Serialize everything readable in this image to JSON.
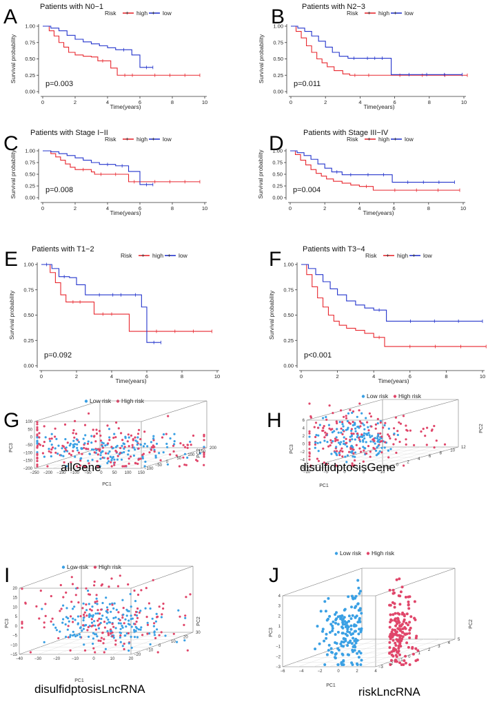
{
  "colors": {
    "high": "#e8262d",
    "low": "#2233cc",
    "low_pca": "#3aa0e4",
    "high_pca": "#e0466a"
  },
  "legend_km": {
    "title": "Risk",
    "high": "high",
    "low": "low"
  },
  "legend_pca": {
    "low": "Low risk",
    "high": "High risk"
  },
  "chart_data": [
    {
      "type": "line",
      "panel": "A",
      "title": "Patients with N0−1",
      "pvalue": "p=0.003",
      "xlabel": "Time(years)",
      "ylabel": "Survival probability",
      "xlim": [
        0,
        10
      ],
      "ylim": [
        0,
        1
      ],
      "xticks": [
        "0",
        "2",
        "4",
        "6",
        "8",
        "10"
      ],
      "yticks": [
        "0.00",
        "0.25",
        "0.50",
        "0.75",
        "1.00"
      ],
      "series": [
        {
          "name": "high",
          "x": [
            0,
            0.4,
            0.7,
            1,
            1.3,
            1.6,
            2,
            2.5,
            3,
            3.4,
            4,
            4.2,
            4.6,
            6,
            9.7
          ],
          "y": [
            1,
            0.93,
            0.85,
            0.75,
            0.68,
            0.6,
            0.56,
            0.54,
            0.53,
            0.47,
            0.47,
            0.36,
            0.25,
            0.25,
            0.25
          ]
        },
        {
          "name": "low",
          "x": [
            0,
            0.5,
            1,
            1.5,
            2,
            2.5,
            3,
            3.5,
            4,
            4.5,
            5.5,
            6,
            6.8
          ],
          "y": [
            1,
            0.97,
            0.93,
            0.86,
            0.8,
            0.76,
            0.73,
            0.7,
            0.67,
            0.64,
            0.56,
            0.37,
            0.37
          ]
        }
      ]
    },
    {
      "type": "line",
      "panel": "B",
      "title": "Patients with N2−3",
      "pvalue": "p=0.011",
      "xlabel": "Time(years)",
      "ylabel": "Survival probability",
      "xlim": [
        0,
        10
      ],
      "ylim": [
        0,
        1
      ],
      "xticks": [
        "0",
        "2",
        "4",
        "6",
        "8",
        "10"
      ],
      "yticks": [
        "0.00",
        "0.25",
        "0.50",
        "0.75",
        "1.00"
      ],
      "series": [
        {
          "name": "high",
          "x": [
            0,
            0.3,
            0.6,
            0.9,
            1.2,
            1.5,
            1.8,
            2.1,
            2.5,
            3,
            3.4,
            4,
            5,
            10.2
          ],
          "y": [
            1,
            0.92,
            0.82,
            0.7,
            0.6,
            0.5,
            0.44,
            0.38,
            0.32,
            0.27,
            0.25,
            0.25,
            0.25,
            0.25
          ]
        },
        {
          "name": "low",
          "x": [
            0,
            0.4,
            0.8,
            1.2,
            1.6,
            2,
            2.4,
            2.8,
            3.3,
            4,
            5.7,
            5.8,
            9.9
          ],
          "y": [
            1,
            0.97,
            0.92,
            0.85,
            0.77,
            0.68,
            0.6,
            0.54,
            0.51,
            0.51,
            0.51,
            0.26,
            0.26
          ]
        }
      ]
    },
    {
      "type": "line",
      "panel": "C",
      "title": "Patients with Stage I−II",
      "pvalue": "p=0.008",
      "xlabel": "Time(years)",
      "ylabel": "Survival probability",
      "xlim": [
        0,
        10
      ],
      "ylim": [
        0,
        1
      ],
      "xticks": [
        "0",
        "2",
        "4",
        "6",
        "8",
        "10"
      ],
      "yticks": [
        "0.00",
        "0.25",
        "0.50",
        "0.75",
        "1.00"
      ],
      "series": [
        {
          "name": "high",
          "x": [
            0,
            0.5,
            0.8,
            1.1,
            1.4,
            1.7,
            2,
            3,
            3.2,
            4,
            5,
            5.3,
            6,
            9.7
          ],
          "y": [
            1,
            0.94,
            0.87,
            0.8,
            0.72,
            0.65,
            0.6,
            0.55,
            0.5,
            0.5,
            0.5,
            0.34,
            0.34,
            0.34
          ]
        },
        {
          "name": "low",
          "x": [
            0,
            0.5,
            1,
            1.5,
            2,
            2.5,
            3,
            3.5,
            4.5,
            5.3,
            5.6,
            6,
            6.8
          ],
          "y": [
            1,
            0.98,
            0.94,
            0.9,
            0.85,
            0.8,
            0.75,
            0.71,
            0.68,
            0.56,
            0.56,
            0.28,
            0.28
          ]
        }
      ]
    },
    {
      "type": "line",
      "panel": "D",
      "title": "Patients with Stage III−IV",
      "pvalue": "p=0.004",
      "xlabel": "Time(years)",
      "ylabel": "Survival probability",
      "xlim": [
        0,
        10
      ],
      "ylim": [
        0,
        1
      ],
      "xticks": [
        "0",
        "2",
        "4",
        "6",
        "8",
        "10"
      ],
      "yticks": [
        "0.00",
        "0.25",
        "0.50",
        "0.75",
        "1.00"
      ],
      "series": [
        {
          "name": "high",
          "x": [
            0,
            0.3,
            0.6,
            0.9,
            1.2,
            1.5,
            1.8,
            2.1,
            2.5,
            3,
            3.5,
            4,
            4.8,
            9.8
          ],
          "y": [
            1,
            0.92,
            0.8,
            0.7,
            0.6,
            0.52,
            0.46,
            0.4,
            0.35,
            0.31,
            0.27,
            0.24,
            0.16,
            0.16
          ]
        },
        {
          "name": "low",
          "x": [
            0,
            0.4,
            0.8,
            1.2,
            1.6,
            2,
            2.4,
            3,
            4,
            5,
            5.8,
            5.9,
            9.5
          ],
          "y": [
            1,
            0.96,
            0.9,
            0.82,
            0.72,
            0.63,
            0.55,
            0.49,
            0.49,
            0.49,
            0.49,
            0.33,
            0.33
          ]
        }
      ]
    },
    {
      "type": "line",
      "panel": "E",
      "title": "Patients with T1−2",
      "pvalue": "p=0.092",
      "xlabel": "Time(years)",
      "ylabel": "Survival probability",
      "xlim": [
        0,
        10
      ],
      "ylim": [
        0,
        1
      ],
      "xticks": [
        "0",
        "2",
        "4",
        "6",
        "8",
        "10"
      ],
      "yticks": [
        "0.00",
        "0.25",
        "0.50",
        "0.75",
        "1.00"
      ],
      "series": [
        {
          "name": "high",
          "x": [
            0,
            0.5,
            0.8,
            1.1,
            1.4,
            2.6,
            3,
            4.5,
            5,
            5.5,
            9.7
          ],
          "y": [
            1,
            0.92,
            0.82,
            0.7,
            0.63,
            0.63,
            0.51,
            0.51,
            0.34,
            0.34,
            0.34
          ]
        },
        {
          "name": "low",
          "x": [
            0,
            0.6,
            1,
            1.6,
            2,
            2.5,
            3,
            3.6,
            5,
            5.7,
            6,
            6.8
          ],
          "y": [
            1,
            0.96,
            0.88,
            0.87,
            0.8,
            0.7,
            0.7,
            0.7,
            0.7,
            0.58,
            0.23,
            0.23
          ]
        }
      ]
    },
    {
      "type": "line",
      "panel": "F",
      "title": "Patients with T3−4",
      "pvalue": "p<0.001",
      "xlabel": "Time(years)",
      "ylabel": "Survival probability",
      "xlim": [
        0,
        10
      ],
      "ylim": [
        0,
        1
      ],
      "xticks": [
        "0",
        "2",
        "4",
        "6",
        "8",
        "10"
      ],
      "yticks": [
        "0.00",
        "0.25",
        "0.50",
        "0.75",
        "1.00"
      ],
      "series": [
        {
          "name": "high",
          "x": [
            0,
            0.3,
            0.6,
            0.9,
            1.2,
            1.5,
            1.8,
            2.1,
            2.5,
            3,
            3.5,
            4,
            4.6,
            10.2
          ],
          "y": [
            1,
            0.9,
            0.78,
            0.67,
            0.58,
            0.5,
            0.44,
            0.4,
            0.37,
            0.35,
            0.32,
            0.28,
            0.19,
            0.19
          ]
        },
        {
          "name": "low",
          "x": [
            0,
            0.4,
            0.8,
            1.2,
            1.6,
            2,
            2.5,
            3,
            3.5,
            4,
            4.6,
            4.7,
            10
          ],
          "y": [
            1,
            0.96,
            0.9,
            0.83,
            0.76,
            0.7,
            0.64,
            0.6,
            0.57,
            0.55,
            0.55,
            0.44,
            0.44
          ]
        }
      ]
    },
    {
      "type": "scatter",
      "panel": "G",
      "caption": "allGene",
      "xlabel": "PC1",
      "ylabel": "PC3",
      "zlabel": "PC2",
      "xticks": [
        "−250",
        "−200",
        "−150",
        "−100",
        "−50",
        "0",
        "50",
        "100",
        "150"
      ],
      "yticks": [
        "−200",
        "−150",
        "−100",
        "−50",
        "0",
        "50",
        "100"
      ],
      "zticks": [
        "−100",
        "−50",
        "0",
        "50",
        "100",
        "150",
        "200"
      ],
      "xlim": [
        -250,
        150
      ],
      "ylim": [
        -200,
        100
      ],
      "zlim": [
        -100,
        200
      ]
    },
    {
      "type": "scatter",
      "panel": "H",
      "caption": "disulfidptosisGene",
      "xlabel": "PC1",
      "ylabel": "PC3",
      "zlabel": "PC2",
      "xticks": [
        "−10",
        "−5",
        "0",
        "5",
        "10"
      ],
      "yticks": [
        "−6",
        "−4",
        "−2",
        "0",
        "2",
        "4",
        "6"
      ],
      "zticks": [
        "−2",
        "0",
        "2",
        "4",
        "6",
        "8",
        "10",
        "12"
      ],
      "xlim": [
        -10,
        10
      ],
      "ylim": [
        -6,
        6
      ],
      "zlim": [
        -2,
        12
      ]
    },
    {
      "type": "scatter",
      "panel": "I",
      "caption": "disulfidptosisLncRNA",
      "xlabel": "PC1",
      "ylabel": "PC3",
      "zlabel": "PC2",
      "xticks": [
        "−40",
        "−30",
        "−20",
        "−10",
        "0",
        "10",
        "20"
      ],
      "yticks": [
        "−15",
        "−10",
        "−5",
        "0",
        "5",
        "10",
        "15",
        "20"
      ],
      "zticks": [
        "−20",
        "−10",
        "0",
        "10",
        "20",
        "30"
      ],
      "xlim": [
        -40,
        20
      ],
      "ylim": [
        -15,
        20
      ],
      "zlim": [
        -20,
        30
      ]
    },
    {
      "type": "scatter",
      "panel": "J",
      "caption": "riskLncRNA",
      "xlabel": "PC1",
      "ylabel": "PC3",
      "zlabel": "PC2",
      "xticks": [
        "−6",
        "−4",
        "−2",
        "0",
        "2",
        "4"
      ],
      "yticks": [
        "−3",
        "−2",
        "−1",
        "0",
        "1",
        "2",
        "3",
        "4"
      ],
      "zticks": [
        "−3",
        "−2",
        "−1",
        "0",
        "1",
        "2",
        "3",
        "4",
        "5"
      ],
      "xlim": [
        -6,
        4
      ],
      "ylim": [
        -3,
        4
      ],
      "zlim": [
        -3,
        5
      ]
    }
  ]
}
